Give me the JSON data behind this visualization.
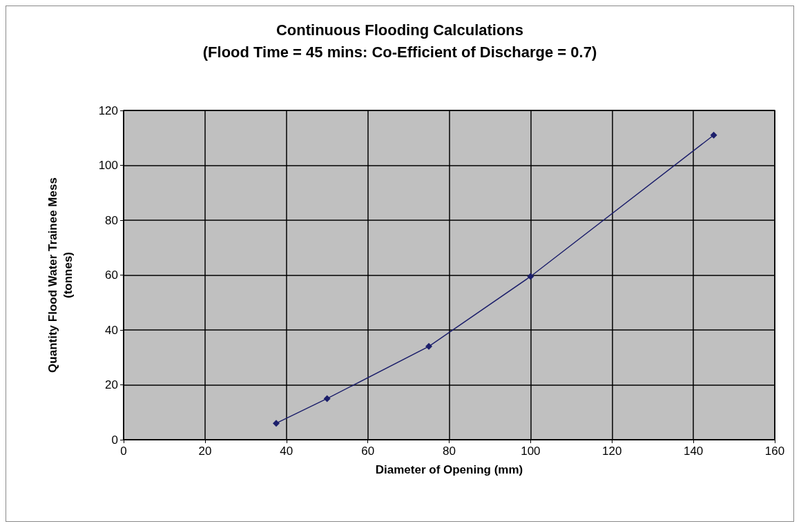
{
  "chart_data": {
    "type": "line",
    "title": "Continuous Flooding Calculations",
    "subtitle": "(Flood Time = 45 mins: Co-Efficient of Discharge = 0.7)",
    "xlabel": "Diameter of Opening (mm)",
    "ylabel": "Quantity Flood Water Trainee Mess\n(tonnes)",
    "x": [
      37.5,
      50,
      75,
      100,
      145
    ],
    "series": [
      {
        "color": "#1c1f6b",
        "values": [
          6,
          15,
          34,
          59.5,
          111
        ]
      }
    ],
    "xlim": [
      0,
      160
    ],
    "xticks": [
      0,
      20,
      40,
      60,
      80,
      100,
      120,
      140,
      160
    ],
    "ylim": [
      0,
      120
    ],
    "yticks": [
      0,
      20,
      40,
      60,
      80,
      100,
      120
    ],
    "grid": true,
    "marker": "diamond",
    "line_style": "solid"
  }
}
